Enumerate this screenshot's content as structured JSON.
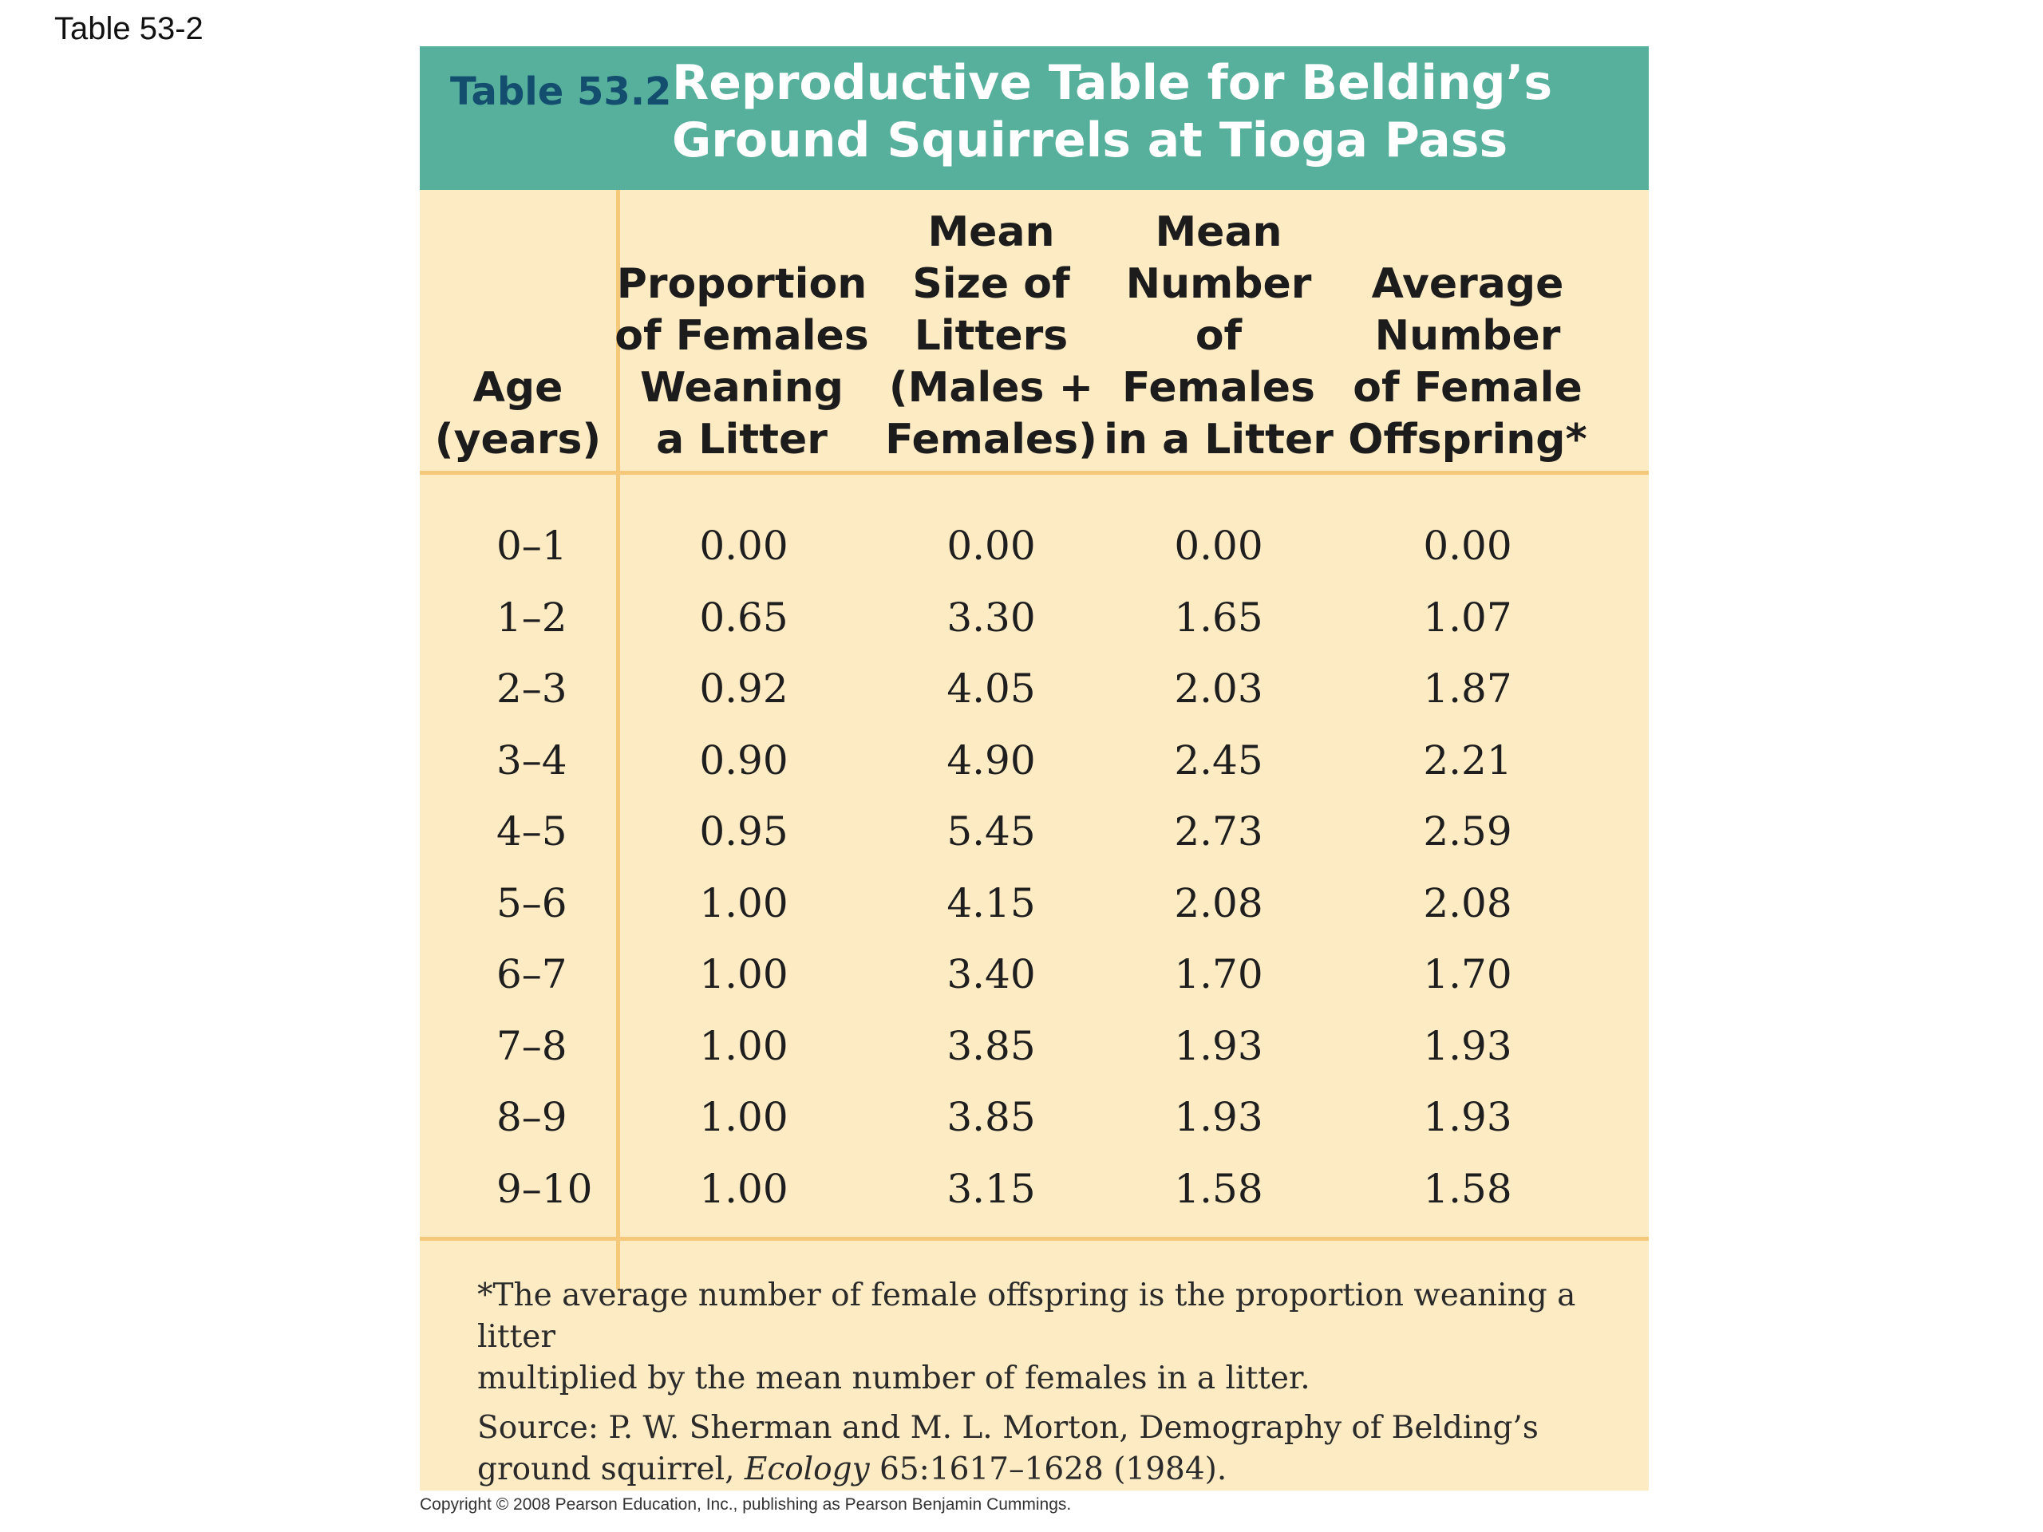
{
  "slide_label": "Table 53-2",
  "table": {
    "number": "Table 53.2",
    "title_line1": "Reproductive Table for Belding’s",
    "title_line2": "Ground Squirrels at Tioga Pass",
    "headers": [
      [
        "Age",
        "(years)"
      ],
      [
        "Proportion",
        "of Females",
        "Weaning",
        "a Litter"
      ],
      [
        "Mean",
        "Size of",
        "Litters",
        "(Males +",
        "Females)"
      ],
      [
        "Mean",
        "Number",
        "of",
        "Females",
        "in a Litter"
      ],
      [
        "Average",
        "Number",
        "of Female",
        "Offspring*"
      ]
    ],
    "rows": [
      [
        "0–1",
        "0.00",
        "0.00",
        "0.00",
        "0.00"
      ],
      [
        "1–2",
        "0.65",
        "3.30",
        "1.65",
        "1.07"
      ],
      [
        "2–3",
        "0.92",
        "4.05",
        "2.03",
        "1.87"
      ],
      [
        "3–4",
        "0.90",
        "4.90",
        "2.45",
        "2.21"
      ],
      [
        "4–5",
        "0.95",
        "5.45",
        "2.73",
        "2.59"
      ],
      [
        "5–6",
        "1.00",
        "4.15",
        "2.08",
        "2.08"
      ],
      [
        "6–7",
        "1.00",
        "3.40",
        "1.70",
        "1.70"
      ],
      [
        "7–8",
        "1.00",
        "3.85",
        "1.93",
        "1.93"
      ],
      [
        "8–9",
        "1.00",
        "3.85",
        "1.93",
        "1.93"
      ],
      [
        "9–10",
        "1.00",
        "3.15",
        "1.58",
        "1.58"
      ]
    ],
    "footnote_line1": "*The average number of female offspring is the proportion weaning a litter",
    "footnote_line2": "multiplied by the mean number of females in a litter.",
    "source_line1": "Source: P. W. Sherman and M. L. Morton, Demography of Belding’s",
    "source_line2_prefix": "ground squirrel, ",
    "source_journal": "Ecology",
    "source_line2_suffix": " 65:1617–1628 (1984)."
  },
  "copyright": "Copyright © 2008 Pearson Education, Inc., publishing as Pearson Benjamin Cummings.",
  "colors": {
    "title_bar": "#56b09c",
    "title_number": "#134e6e",
    "table_background": "#fdebc3",
    "rule": "#f6c97a"
  }
}
